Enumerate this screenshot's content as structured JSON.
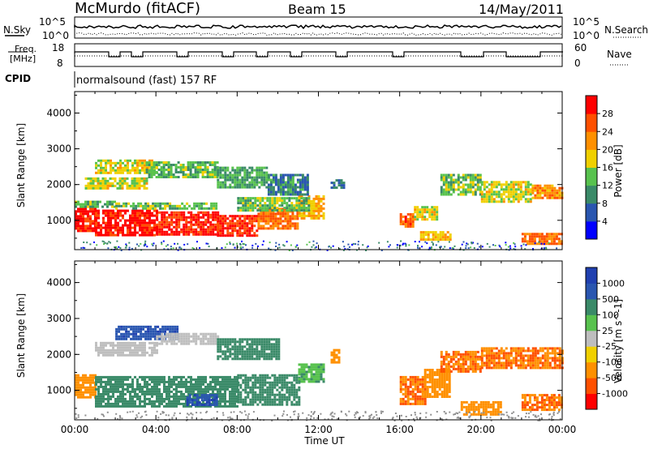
{
  "header": {
    "station": "McMurdo (fitACF)",
    "beam": "Beam 15",
    "date": "14/May/2011"
  },
  "top_panels": {
    "nsky_label": "N.Sky",
    "nsky_ticks": [
      "10^5",
      "10^0"
    ],
    "nsearch_label": "N.Search",
    "nsearch_ticks": [
      "10^5",
      "10^0"
    ],
    "freq_label_1": "Freq.",
    "freq_label_2": "[MHz]",
    "freq_ticks": [
      "18",
      "8"
    ],
    "nave_label": "Nave",
    "nave_ticks": [
      "60",
      "0"
    ],
    "cpid_label": "CPID",
    "cpid_value": "normalsound (fast) 157 RF"
  },
  "colors": {
    "power_scale": [
      "#0000ff",
      "#2a56b0",
      "#3a8a68",
      "#58c24e",
      "#f0d000",
      "#ff9000",
      "#ff5000",
      "#ff0000"
    ],
    "velocity_scale": [
      "#2040b0",
      "#2a56b0",
      "#3a8a68",
      "#58c24e",
      "#bebebe",
      "#f0d000",
      "#ff9000",
      "#ff5000",
      "#ff0000"
    ],
    "ground_scatter": "#909090"
  },
  "chart_data": [
    {
      "type": "heatmap",
      "title": "",
      "xlabel": "Time UT",
      "ylabel": "Slant Range [km]",
      "xlim": [
        0,
        24
      ],
      "ylim": [
        180,
        4600
      ],
      "x_ticks": [
        "00:00",
        "04:00",
        "08:00",
        "12:00",
        "16:00",
        "20:00",
        "00:00"
      ],
      "y_ticks": [
        "1000",
        "2000",
        "3000",
        "4000"
      ],
      "colorbar_label": "Power [dB]",
      "colorbar_ticks": [
        "28",
        "24",
        "20",
        "16",
        "12",
        "8",
        "4"
      ],
      "colorbar_range": [
        0,
        32
      ],
      "regions": [
        {
          "t0": 0.0,
          "t1": 1.0,
          "r0": 700,
          "r1": 1350,
          "value": 30
        },
        {
          "t0": 1.0,
          "t1": 4.0,
          "r0": 600,
          "r1": 1300,
          "value": 30
        },
        {
          "t0": 4.0,
          "t1": 7.0,
          "r0": 580,
          "r1": 1250,
          "value": 29
        },
        {
          "t0": 7.0,
          "t1": 9.0,
          "r0": 560,
          "r1": 1150,
          "value": 28
        },
        {
          "t0": 9.0,
          "t1": 11.0,
          "r0": 800,
          "r1": 1350,
          "value": 24
        },
        {
          "t0": 11.0,
          "t1": 12.3,
          "r0": 1050,
          "r1": 1700,
          "value": 20
        },
        {
          "t0": 0.0,
          "t1": 2.0,
          "r0": 1350,
          "r1": 1550,
          "value": 13
        },
        {
          "t0": 2.0,
          "t1": 7.0,
          "r0": 1300,
          "r1": 1500,
          "value": 14
        },
        {
          "t0": 8.0,
          "t1": 11.5,
          "r0": 1300,
          "r1": 1650,
          "value": 14
        },
        {
          "t0": 0.5,
          "t1": 3.5,
          "r0": 1900,
          "r1": 2200,
          "value": 17
        },
        {
          "t0": 1.0,
          "t1": 4.0,
          "r0": 2300,
          "r1": 2700,
          "value": 18
        },
        {
          "t0": 3.5,
          "t1": 7.0,
          "r0": 2200,
          "r1": 2650,
          "value": 13
        },
        {
          "t0": 7.0,
          "t1": 9.5,
          "r0": 1900,
          "r1": 2500,
          "value": 12
        },
        {
          "t0": 9.5,
          "t1": 11.5,
          "r0": 1700,
          "r1": 2300,
          "value": 9
        },
        {
          "t0": 12.6,
          "t1": 13.2,
          "r0": 1900,
          "r1": 2150,
          "value": 9
        },
        {
          "t0": 16.0,
          "t1": 16.7,
          "r0": 800,
          "r1": 1200,
          "value": 25
        },
        {
          "t0": 16.7,
          "t1": 17.8,
          "r0": 1000,
          "r1": 1400,
          "value": 17
        },
        {
          "t0": 17.0,
          "t1": 18.5,
          "r0": 450,
          "r1": 700,
          "value": 20
        },
        {
          "t0": 18.0,
          "t1": 20.0,
          "r0": 1700,
          "r1": 2300,
          "value": 14
        },
        {
          "t0": 20.0,
          "t1": 22.5,
          "r0": 1500,
          "r1": 2100,
          "value": 17
        },
        {
          "t0": 22.5,
          "t1": 24.0,
          "r0": 1650,
          "r1": 2000,
          "value": 22
        },
        {
          "t0": 22.0,
          "t1": 24.0,
          "r0": 350,
          "r1": 650,
          "value": 24
        }
      ]
    },
    {
      "type": "heatmap",
      "title": "",
      "xlabel": "Time UT",
      "ylabel": "Slant Range [km]",
      "xlim": [
        0,
        24
      ],
      "ylim": [
        180,
        4600
      ],
      "x_ticks": [
        "00:00",
        "04:00",
        "08:00",
        "12:00",
        "16:00",
        "20:00",
        "00:00"
      ],
      "y_ticks": [
        "1000",
        "2000",
        "3000",
        "4000"
      ],
      "colorbar_label": "Velocity [m s^-1]",
      "colorbar_ticks": [
        "1000",
        "500",
        "100",
        "25",
        "-25",
        "-100",
        "-500",
        "-1000"
      ],
      "regions": [
        {
          "t0": 0.0,
          "t1": 1.0,
          "r0": 800,
          "r1": 1450,
          "value": -100
        },
        {
          "t0": 1.0,
          "t1": 8.0,
          "r0": 550,
          "r1": 1400,
          "value": 200
        },
        {
          "t0": 5.5,
          "t1": 7.0,
          "r0": 600,
          "r1": 900,
          "value": 700
        },
        {
          "t0": 8.0,
          "t1": 11.0,
          "r0": 600,
          "r1": 1450,
          "value": 200
        },
        {
          "t0": 11.0,
          "t1": 12.2,
          "r0": 1250,
          "r1": 1750,
          "value": 50
        },
        {
          "t0": 1.0,
          "t1": 4.0,
          "r0": 1950,
          "r1": 2350,
          "value": 0
        },
        {
          "t0": 2.0,
          "t1": 5.0,
          "r0": 2450,
          "r1": 2800,
          "value": 600
        },
        {
          "t0": 4.0,
          "t1": 7.0,
          "r0": 2300,
          "r1": 2600,
          "value": 0
        },
        {
          "t0": 7.0,
          "t1": 10.0,
          "r0": 1900,
          "r1": 2450,
          "value": 200
        },
        {
          "t0": 16.0,
          "t1": 17.2,
          "r0": 650,
          "r1": 1400,
          "value": -300
        },
        {
          "t0": 17.2,
          "t1": 18.5,
          "r0": 800,
          "r1": 1600,
          "value": -150
        },
        {
          "t0": 18.0,
          "t1": 20.0,
          "r0": 1550,
          "r1": 2100,
          "value": -300
        },
        {
          "t0": 20.0,
          "t1": 24.0,
          "r0": 1650,
          "r1": 2200,
          "value": -300
        },
        {
          "t0": 19.0,
          "t1": 21.0,
          "r0": 350,
          "r1": 700,
          "value": -150
        },
        {
          "t0": 22.0,
          "t1": 24.0,
          "r0": 450,
          "r1": 900,
          "value": -300
        },
        {
          "t0": 12.6,
          "t1": 13.0,
          "r0": 1800,
          "r1": 2150,
          "value": -150
        }
      ]
    }
  ]
}
